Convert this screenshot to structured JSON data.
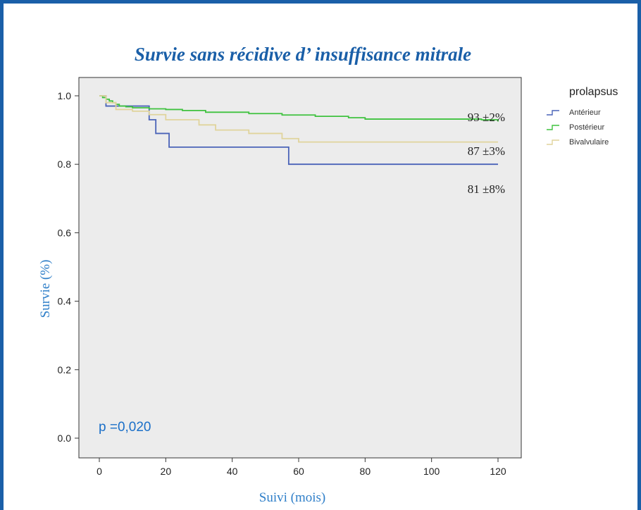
{
  "chart_data": {
    "type": "line",
    "step": true,
    "title": "Survie sans récidive d’ insuffisance mitrale",
    "xlabel": "Suivi (mois)",
    "ylabel": "Survie (%)",
    "xlim": [
      0,
      120
    ],
    "ylim": [
      0.0,
      1.0
    ],
    "xticks": [
      "0",
      "20",
      "40",
      "60",
      "80",
      "100",
      "120"
    ],
    "yticks": [
      "0.0",
      "0.2",
      "0.4",
      "0.6",
      "0.8",
      "1.0"
    ],
    "grid": false,
    "legend": {
      "title": "prolapsus",
      "position": "right-outside"
    },
    "series": [
      {
        "name": "Antérieur",
        "color": "#4a63b8",
        "x": [
          0,
          2,
          15,
          17,
          21,
          57,
          120
        ],
        "y": [
          1.0,
          0.97,
          0.93,
          0.89,
          0.85,
          0.8,
          0.8
        ]
      },
      {
        "name": "Postérieur",
        "color": "#3fc23f",
        "x": [
          0,
          1,
          2,
          3,
          4,
          5,
          6,
          8,
          10,
          15,
          20,
          25,
          32,
          45,
          55,
          65,
          75,
          80,
          100,
          115,
          120
        ],
        "y": [
          1.0,
          0.995,
          0.99,
          0.985,
          0.98,
          0.975,
          0.97,
          0.968,
          0.965,
          0.962,
          0.96,
          0.957,
          0.952,
          0.948,
          0.944,
          0.94,
          0.936,
          0.932,
          0.932,
          0.93,
          0.925
        ]
      },
      {
        "name": "Bivalvulaire",
        "color": "#e0d49c",
        "x": [
          0,
          2,
          5,
          10,
          15,
          20,
          30,
          35,
          45,
          55,
          60,
          65,
          120
        ],
        "y": [
          1.0,
          0.98,
          0.96,
          0.955,
          0.945,
          0.93,
          0.915,
          0.9,
          0.89,
          0.875,
          0.865,
          0.865,
          0.865
        ]
      }
    ],
    "annotations": [
      "93 ±2%",
      "87 ±3%",
      "81 ±8%"
    ],
    "p_value": "p =0,020"
  }
}
